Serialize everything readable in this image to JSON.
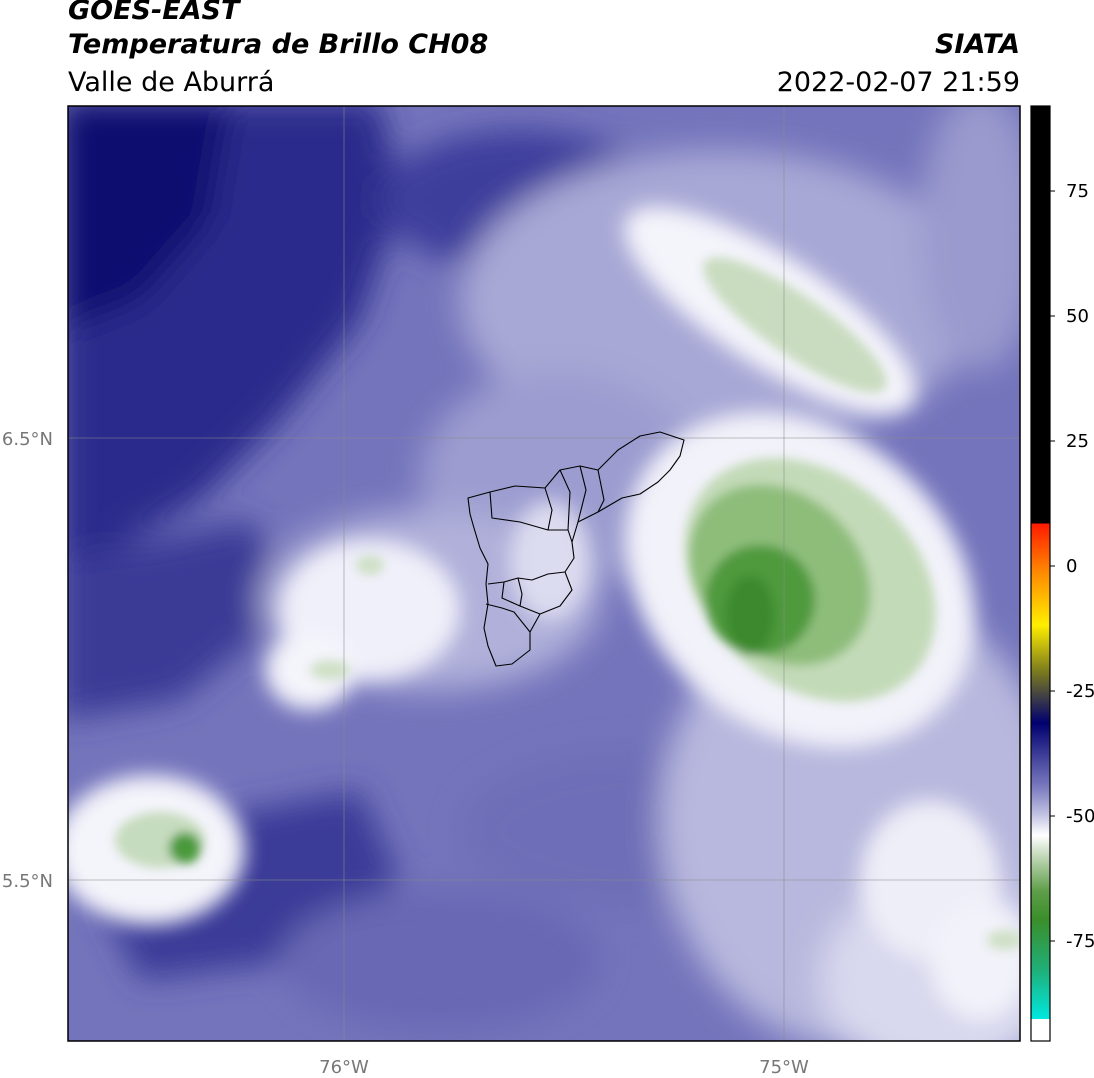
{
  "header": {
    "satellite": "GOES-EAST",
    "product": "Temperatura de Brillo CH08",
    "region": "Valle de Aburrá",
    "source": "SIATA",
    "datetime": "2022-02-07 21:59"
  },
  "map": {
    "lon_ticks": [
      {
        "value": -76,
        "label": "76°W"
      },
      {
        "value": -75,
        "label": "75°W"
      }
    ],
    "lat_ticks": [
      {
        "value": 6.5,
        "label": "6.5°N"
      },
      {
        "value": 5.5,
        "label": "5.5°N"
      }
    ],
    "lon_range": [
      -76.62,
      -74.45
    ],
    "lat_range": [
      5.13,
      7.25
    ]
  },
  "colorbar": {
    "range": [
      -95,
      92
    ],
    "ticks": [
      {
        "value": 75,
        "label": "75"
      },
      {
        "value": 50,
        "label": "50"
      },
      {
        "value": 25,
        "label": "25"
      },
      {
        "value": 0,
        "label": "0"
      },
      {
        "value": -25,
        "label": "-25"
      },
      {
        "value": -50,
        "label": "-50"
      },
      {
        "value": -75,
        "label": "-75"
      }
    ],
    "colors": {
      "black": "#000000",
      "red": "#ff1a00",
      "orange": "#ff8c00",
      "yellow": "#ffee00",
      "olive": "#7a7a1e",
      "navy": "#000070",
      "indigo": "#34349a",
      "periwinkle": "#7e7ec2",
      "white": "#ffffff",
      "green": "#3a8e2a",
      "teal": "#1fb07a",
      "cyan": "#00e8e0"
    }
  }
}
